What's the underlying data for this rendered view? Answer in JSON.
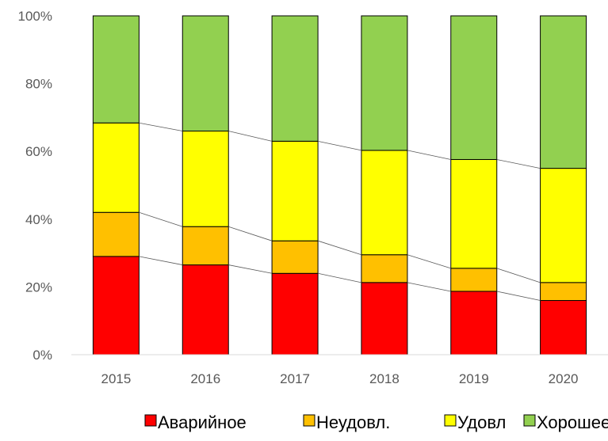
{
  "chart_data": {
    "type": "bar",
    "stacked": true,
    "percent": true,
    "categories": [
      "2015",
      "2016",
      "2017",
      "2018",
      "2019",
      "2020"
    ],
    "series": [
      {
        "name": "Аварийное",
        "color": "#FF0000",
        "values": [
          29,
          26.5,
          24,
          21.3,
          18.7,
          16
        ]
      },
      {
        "name": "Неудовл.",
        "color": "#FFC000",
        "values": [
          13,
          11.3,
          9.6,
          8.2,
          6.8,
          5.3
        ]
      },
      {
        "name": "Удовл",
        "color": "#FFFF00",
        "values": [
          26.4,
          28.2,
          29.4,
          30.8,
          32.1,
          33.7
        ]
      },
      {
        "name": "Хорошее",
        "color": "#92D050",
        "values": [
          31.6,
          34,
          37,
          39.7,
          42.4,
          45
        ]
      }
    ],
    "y_ticks": [
      "0%",
      "20%",
      "40%",
      "60%",
      "80%",
      "100%"
    ],
    "y_tick_values": [
      0,
      20,
      40,
      60,
      80,
      100
    ],
    "ylim": [
      0,
      100
    ],
    "grid": false,
    "series_lines": true,
    "legend_position": "bottom"
  }
}
